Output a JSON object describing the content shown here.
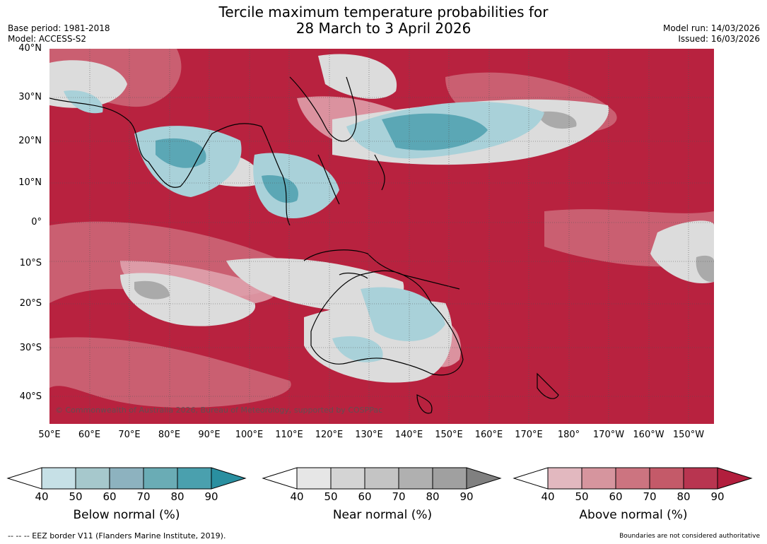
{
  "header": {
    "title_line1": "Tercile maximum temperature probabilities for",
    "title_line2": "28 March to 3 April 2026",
    "base_period": "Base period: 1981-2018",
    "model": "Model: ACCESS-S2",
    "model_run": "Model run: 14/03/2026",
    "issued": "Issued: 16/03/2026"
  },
  "map": {
    "lat_labels": [
      "40°N",
      "30°N",
      "20°N",
      "10°N",
      "0°",
      "10°S",
      "20°S",
      "30°S",
      "40°S"
    ],
    "lon_labels": [
      "50°E",
      "60°E",
      "70°E",
      "80°E",
      "90°E",
      "100°E",
      "110°E",
      "120°E",
      "130°E",
      "140°E",
      "150°E",
      "160°E",
      "170°E",
      "180°",
      "170°W",
      "160°W",
      "150°W"
    ],
    "copyright": "© Commonwealth of Australia 2026, Bureau of Meteorology, supported by COSPPac"
  },
  "colorbars": [
    {
      "title": "Below normal (%)",
      "ticks": [
        "40",
        "50",
        "60",
        "70",
        "80",
        "90"
      ],
      "colors": [
        "#ffffff",
        "#c6e0e6",
        "#a6c8cc",
        "#8db2bf",
        "#6aacb5",
        "#4aa0ae",
        "#2a8fa0"
      ]
    },
    {
      "title": "Near normal (%)",
      "ticks": [
        "40",
        "50",
        "60",
        "70",
        "80",
        "90"
      ],
      "colors": [
        "#ffffff",
        "#e6e6e6",
        "#d4d4d4",
        "#c4c4c4",
        "#b0b0b0",
        "#a0a0a0",
        "#808080"
      ]
    },
    {
      "title": "Above normal (%)",
      "ticks": [
        "40",
        "50",
        "60",
        "70",
        "80",
        "90"
      ],
      "colors": [
        "#ffffff",
        "#e2b8bf",
        "#d6959e",
        "#cc7480",
        "#c45a69",
        "#b83550",
        "#b21e3d"
      ]
    }
  ],
  "footer": {
    "eez": "--  --  -- EEZ border V11 (Flanders Marine Institute, 2019).",
    "disclaimer": "Boundaries are not considered authoritative"
  }
}
